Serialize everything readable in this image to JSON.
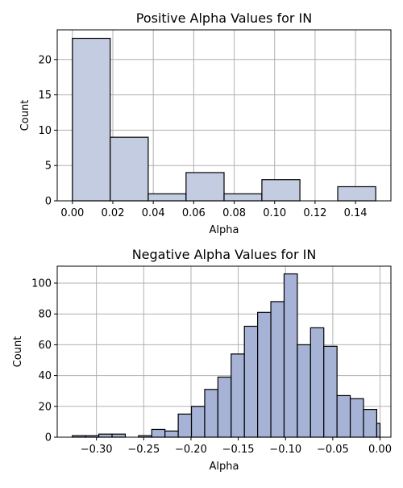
{
  "chart_data": [
    {
      "type": "bar",
      "title": "Positive Alpha Values for IN",
      "xlabel": "Alpha",
      "ylabel": "Count",
      "xlim": [
        -0.0075,
        0.1575
      ],
      "ylim": [
        0,
        24.2
      ],
      "grid": true,
      "color": "#c3cce0",
      "x_ticks": [
        0.0,
        0.02,
        0.04,
        0.06,
        0.08,
        0.1,
        0.12,
        0.14
      ],
      "x_tick_labels": [
        "0.00",
        "0.02",
        "0.04",
        "0.06",
        "0.08",
        "0.10",
        "0.12",
        "0.14"
      ],
      "y_ticks": [
        0,
        5,
        10,
        15,
        20
      ],
      "y_tick_labels": [
        "0",
        "5",
        "10",
        "15",
        "20"
      ],
      "bins": [
        {
          "x0": 0.0,
          "x1": 0.0187,
          "count": 23
        },
        {
          "x0": 0.0187,
          "x1": 0.0375,
          "count": 9
        },
        {
          "x0": 0.0375,
          "x1": 0.0562,
          "count": 1
        },
        {
          "x0": 0.0562,
          "x1": 0.075,
          "count": 4
        },
        {
          "x0": 0.075,
          "x1": 0.0937,
          "count": 1
        },
        {
          "x0": 0.0937,
          "x1": 0.1125,
          "count": 3
        },
        {
          "x0": 0.1125,
          "x1": 0.1312,
          "count": 0
        },
        {
          "x0": 0.1312,
          "x1": 0.15,
          "count": 2
        }
      ]
    },
    {
      "type": "bar",
      "title": "Negative Alpha Values for IN",
      "xlabel": "Alpha",
      "ylabel": "Count",
      "xlim": [
        -0.3415,
        0.0115
      ],
      "ylim": [
        0,
        111
      ],
      "grid": true,
      "color": "#a6b3d6",
      "x_ticks": [
        -0.3,
        -0.25,
        -0.2,
        -0.15,
        -0.1,
        -0.05,
        0.0
      ],
      "x_tick_labels": [
        "−0.30",
        "−0.25",
        "−0.20",
        "−0.15",
        "−0.10",
        "−0.05",
        "0.00"
      ],
      "y_ticks": [
        0,
        20,
        40,
        60,
        80,
        100
      ],
      "y_tick_labels": [
        "0",
        "20",
        "40",
        "60",
        "80",
        "100"
      ],
      "bins": [
        {
          "x0": -0.3255,
          "x1": -0.3115,
          "count": 1
        },
        {
          "x0": -0.3115,
          "x1": -0.2975,
          "count": 1
        },
        {
          "x0": -0.2975,
          "x1": -0.2835,
          "count": 2
        },
        {
          "x0": -0.2835,
          "x1": -0.2695,
          "count": 2
        },
        {
          "x0": -0.2695,
          "x1": -0.2555,
          "count": 0
        },
        {
          "x0": -0.2555,
          "x1": -0.2415,
          "count": 1
        },
        {
          "x0": -0.2415,
          "x1": -0.2275,
          "count": 5
        },
        {
          "x0": -0.2275,
          "x1": -0.2135,
          "count": 4
        },
        {
          "x0": -0.2135,
          "x1": -0.1995,
          "count": 15
        },
        {
          "x0": -0.1995,
          "x1": -0.1855,
          "count": 20
        },
        {
          "x0": -0.1855,
          "x1": -0.1715,
          "count": 31
        },
        {
          "x0": -0.1715,
          "x1": -0.1575,
          "count": 39
        },
        {
          "x0": -0.1575,
          "x1": -0.1435,
          "count": 54
        },
        {
          "x0": -0.1435,
          "x1": -0.1295,
          "count": 72
        },
        {
          "x0": -0.1295,
          "x1": -0.1155,
          "count": 81
        },
        {
          "x0": -0.1155,
          "x1": -0.1015,
          "count": 88
        },
        {
          "x0": -0.1015,
          "x1": -0.0875,
          "count": 106
        },
        {
          "x0": -0.0875,
          "x1": -0.0735,
          "count": 60
        },
        {
          "x0": -0.0735,
          "x1": -0.0595,
          "count": 71
        },
        {
          "x0": -0.0595,
          "x1": -0.0455,
          "count": 59
        },
        {
          "x0": -0.0455,
          "x1": -0.0315,
          "count": 27
        },
        {
          "x0": -0.0315,
          "x1": -0.0175,
          "count": 25
        },
        {
          "x0": -0.0175,
          "x1": -0.0035,
          "count": 18
        },
        {
          "x0": -0.0035,
          "x1": 0.0,
          "count": 9
        }
      ]
    }
  ]
}
